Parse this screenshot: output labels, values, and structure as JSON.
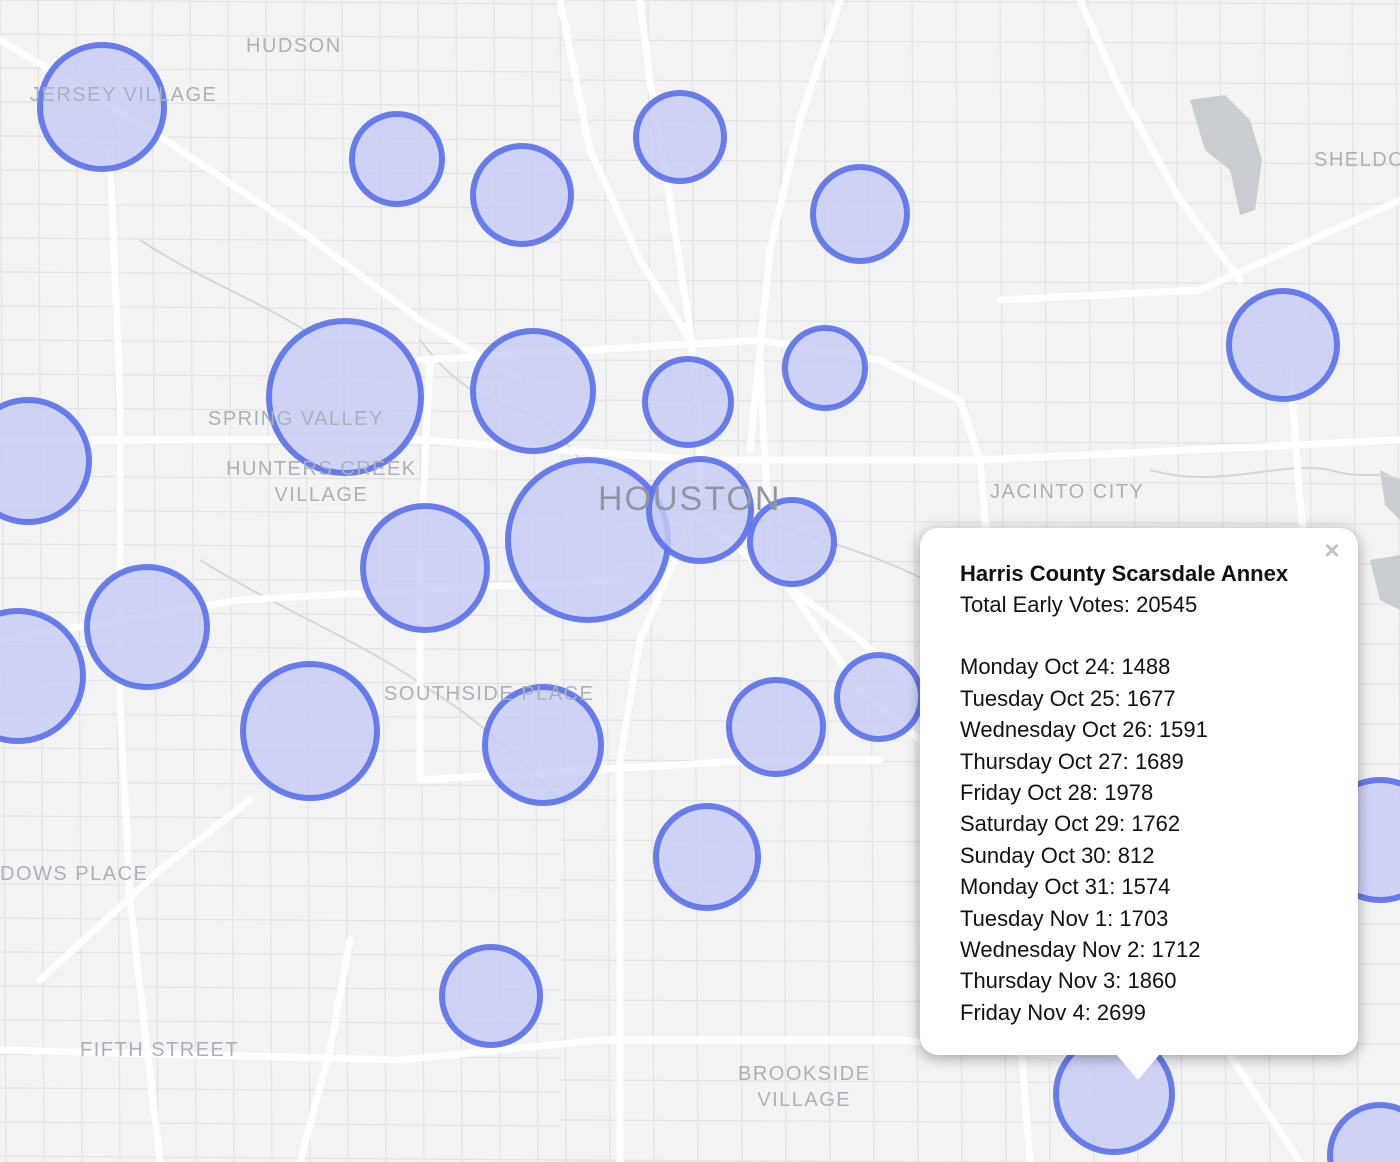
{
  "map": {
    "places": [
      {
        "id": "hudson",
        "text": "HUDSON"
      },
      {
        "id": "jersey-village",
        "text": "JERSEY VILLAGE"
      },
      {
        "id": "sheldon",
        "text": "SHELDO"
      },
      {
        "id": "spring-valley",
        "text": "SPRING VALLEY"
      },
      {
        "id": "hunters-creek",
        "text": "HUNTERS CREEK\nVILLAGE"
      },
      {
        "id": "houston",
        "text": "HOUSTON"
      },
      {
        "id": "jacinto-city",
        "text": "JACINTO CITY"
      },
      {
        "id": "southside-place",
        "text": "SOUTHSIDE PLACE"
      },
      {
        "id": "meadows-place",
        "text": "DOWS PLACE"
      },
      {
        "id": "fifth-street",
        "text": "FIFTH STREET"
      },
      {
        "id": "brookside-village",
        "text": "BROOKSIDE\nVILLAGE"
      }
    ],
    "colors": {
      "marker_fill": "#c6cbf5",
      "marker_stroke": "#5a70ec",
      "road": "#ffffff",
      "street": "#dedede",
      "background": "#f3f3f3",
      "water": "#c9cdd2"
    }
  },
  "popup": {
    "title": "Harris County Scarsdale Annex",
    "total": "Total Early Votes: 20545",
    "lines": [
      "Monday Oct 24: 1488",
      "Tuesday Oct 25: 1677",
      "Wednesday Oct 26: 1591",
      "Thursday Oct 27: 1689",
      "Friday Oct 28: 1978",
      "Saturday Oct 29: 1762",
      "Sunday Oct 30: 812",
      "Monday Oct 31: 1574",
      "Tuesday Nov 1: 1703",
      "Wednesday Nov 2: 1712",
      "Thursday Nov 3: 1860",
      "Friday Nov 4: 2699"
    ],
    "close_label": "×"
  }
}
